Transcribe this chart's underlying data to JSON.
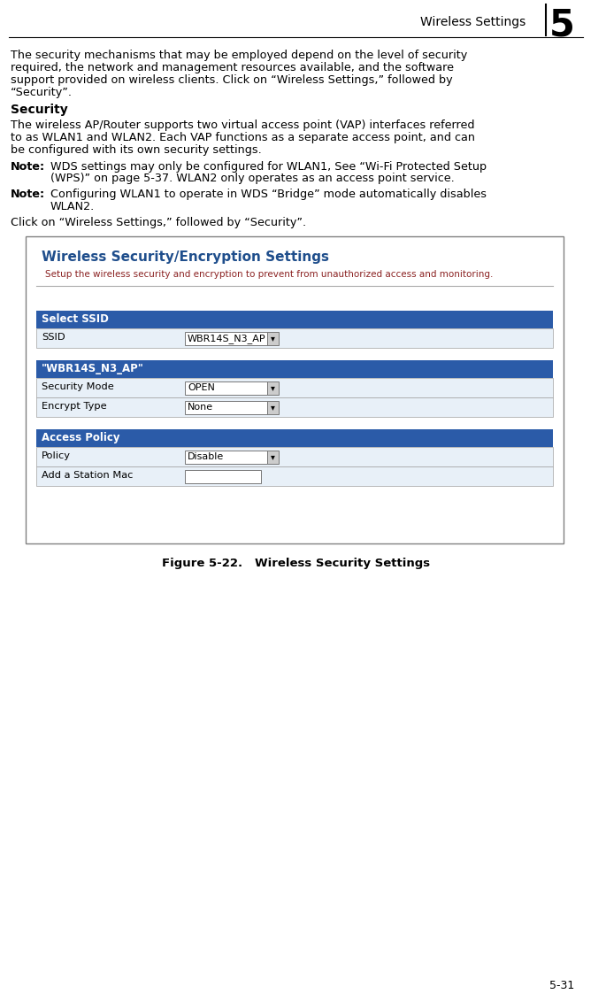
{
  "page_title": "Wireless Settings",
  "page_number": "5",
  "page_footer": "5-31",
  "body_text_1": "The security mechanisms that may be employed depend on the level of security\nrequired, the network and management resources available, and the software\nsupport provided on wireless clients. Click on “Wireless Settings,” followed by\n“Security”.",
  "section_title": "Security",
  "body_text_2": "The wireless AP/Router supports two virtual access point (VAP) interfaces referred\nto as WLAN1 and WLAN2. Each VAP functions as a separate access point, and can\nbe configured with its own security settings.",
  "note1_label": "Note:",
  "note1_text": "WDS settings may only be configured for WLAN1, See “Wi-Fi Protected Setup\n(WPS)” on page 5-37. WLAN2 only operates as an access point service.",
  "note2_label": "Note:",
  "note2_text": "Configuring WLAN1 to operate in WDS “Bridge” mode automatically disables\nWLAN2.",
  "body_text_3": "Click on “Wireless Settings,” followed by “Security”.",
  "figure_caption": "Figure 5-22.   Wireless Security Settings",
  "ui_title": "Wireless Security/Encryption Settings",
  "ui_subtitle": "Setup the wireless security and encryption to prevent from unauthorized access and monitoring.",
  "ui_title_color": "#1F4E8C",
  "ui_subtitle_color": "#8B2222",
  "ui_header_bg": "#2B5BA8",
  "ui_header_text": "#FFFFFF",
  "ui_row_bg_light": "#E8F0F8",
  "ui_border_color": "#A0A0A0",
  "ui_outer_border": "#808080",
  "sections": [
    {
      "header": "Select SSID",
      "rows": [
        {
          "label": "SSID",
          "value": "WBR14S_N3_AP",
          "has_dropdown": true
        }
      ]
    },
    {
      "header": "\"WBR14S_N3_AP\"",
      "rows": [
        {
          "label": "Security Mode",
          "value": "OPEN",
          "has_dropdown": true
        },
        {
          "label": "Encrypt Type",
          "value": "None",
          "has_dropdown": true
        }
      ]
    },
    {
      "header": "Access Policy",
      "rows": [
        {
          "label": "Policy",
          "value": "Disable",
          "has_dropdown": true
        },
        {
          "label": "Add a Station Mac",
          "value": "",
          "has_dropdown": false
        }
      ]
    }
  ]
}
